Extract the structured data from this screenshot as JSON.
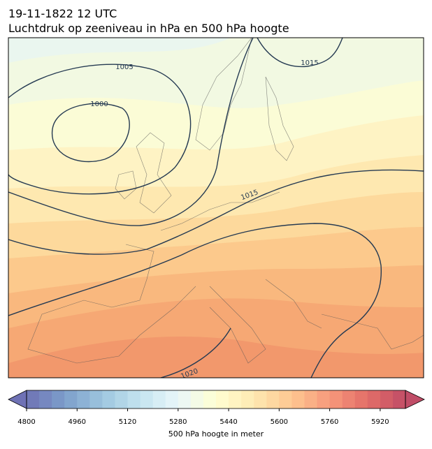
{
  "map": {
    "title_line1": "19-11-1822 12 UTC",
    "title_line2": "Luchtdruk op zeeniveau in hPa en 500 hPa hoogte",
    "contour_labels": [
      "1005",
      "1000",
      "1015",
      "1015",
      "1020"
    ],
    "colorbar": {
      "label": "500 hPa hoogte in meter",
      "lim": [
        4800,
        6000
      ],
      "ticks": [
        4800,
        4960,
        5120,
        5280,
        5440,
        5600,
        5760,
        5920
      ],
      "level_step": 40,
      "colormap": [
        "#313695",
        "#4575b4",
        "#74add1",
        "#abd9e9",
        "#e0f3f8",
        "#ffffbf",
        "#fee090",
        "#fdae61",
        "#f46d43",
        "#d73027",
        "#a50026"
      ],
      "alpha": 0.7
    }
  }
}
